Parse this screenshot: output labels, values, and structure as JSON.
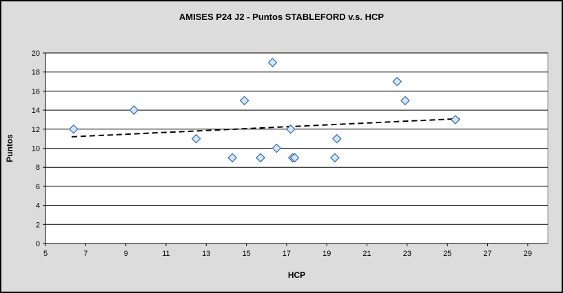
{
  "window": {
    "background_color": "#DCDCDC",
    "frame_border_color": "#000000"
  },
  "chart_data": {
    "type": "scatter",
    "title": "AMISES P24 J2 - Puntos STABLEFORD v.s. HCP",
    "xlabel": "HCP",
    "ylabel": "Puntos",
    "xlim": [
      5,
      30
    ],
    "ylim": [
      0,
      20
    ],
    "xticks": [
      5,
      7,
      9,
      11,
      13,
      15,
      17,
      19,
      21,
      23,
      25,
      27,
      29
    ],
    "yticks": [
      0,
      2,
      4,
      6,
      8,
      10,
      12,
      14,
      16,
      18,
      20
    ],
    "grid": "horizontal",
    "legend_position": "none",
    "series": [
      {
        "name": "Puntos STABLEFORD",
        "marker": "diamond",
        "points": [
          [
            6.4,
            12
          ],
          [
            9.4,
            14
          ],
          [
            12.5,
            11
          ],
          [
            14.3,
            9
          ],
          [
            14.9,
            15
          ],
          [
            15.7,
            9
          ],
          [
            16.3,
            19
          ],
          [
            16.5,
            10
          ],
          [
            17.2,
            12
          ],
          [
            17.3,
            9
          ],
          [
            17.4,
            9
          ],
          [
            19.4,
            9
          ],
          [
            19.5,
            11
          ],
          [
            22.5,
            17
          ],
          [
            22.9,
            15
          ],
          [
            25.4,
            13
          ]
        ]
      }
    ],
    "trendline": {
      "style": "dashed",
      "x1": 6.3,
      "y1": 11.2,
      "x2": 25.6,
      "y2": 13.1
    },
    "colors": {
      "plot_background": "#FFFFFF",
      "plot_border": "#8C8C8C",
      "gridline": "#000000",
      "axis": "#000000",
      "marker_fill": "#CDEAF9",
      "marker_stroke": "#4060A8",
      "trendline": "#000000",
      "text": "#000000"
    }
  }
}
